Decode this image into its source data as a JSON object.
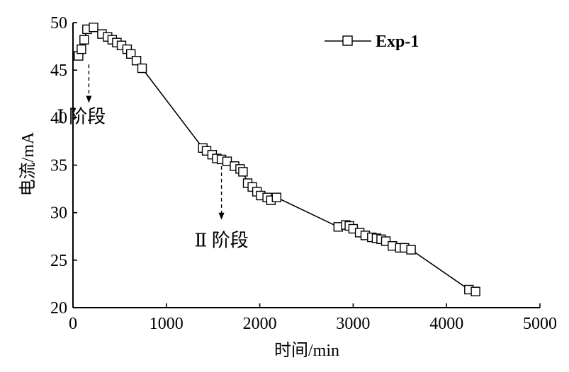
{
  "chart_data": {
    "type": "line",
    "xlabel": "时间/min",
    "ylabel": "电流/mA",
    "xlim": [
      0,
      5000
    ],
    "ylim": [
      20,
      50
    ],
    "xticks": [
      0,
      1000,
      2000,
      3000,
      4000,
      5000
    ],
    "yticks": [
      20,
      25,
      30,
      35,
      40,
      45,
      50
    ],
    "grid": false,
    "legend": {
      "position": "top-right"
    },
    "series": [
      {
        "name": "Exp-1",
        "marker": "square-open",
        "x": [
          60,
          90,
          120,
          150,
          220,
          310,
          370,
          420,
          470,
          520,
          580,
          620,
          680,
          740,
          1390,
          1430,
          1490,
          1540,
          1590,
          1650,
          1730,
          1790,
          1820,
          1870,
          1920,
          1970,
          2010,
          2080,
          2120,
          2180,
          2840,
          2920,
          2960,
          3000,
          3070,
          3130,
          3200,
          3250,
          3300,
          3350,
          3420,
          3500,
          3550,
          3620,
          4240,
          4310
        ],
        "y": [
          46.5,
          47.2,
          48.2,
          49.3,
          49.5,
          48.8,
          48.5,
          48.2,
          47.9,
          47.6,
          47.2,
          46.7,
          46.0,
          45.2,
          36.8,
          36.5,
          36.1,
          35.7,
          35.6,
          35.4,
          34.9,
          34.6,
          34.3,
          33.1,
          32.7,
          32.2,
          31.8,
          31.6,
          31.3,
          31.6,
          28.5,
          28.7,
          28.6,
          28.3,
          27.9,
          27.6,
          27.4,
          27.3,
          27.2,
          27.0,
          26.5,
          26.3,
          26.3,
          26.1,
          21.9,
          21.7
        ]
      }
    ],
    "annotations": [
      {
        "text": "Ⅰ 阶段",
        "arrow_from": [
          170,
          45.6
        ],
        "arrow_to": [
          170,
          41.7
        ]
      },
      {
        "text": "Ⅱ 阶段",
        "arrow_from": [
          1590,
          34.9
        ],
        "arrow_to": [
          1590,
          29.4
        ]
      }
    ]
  }
}
